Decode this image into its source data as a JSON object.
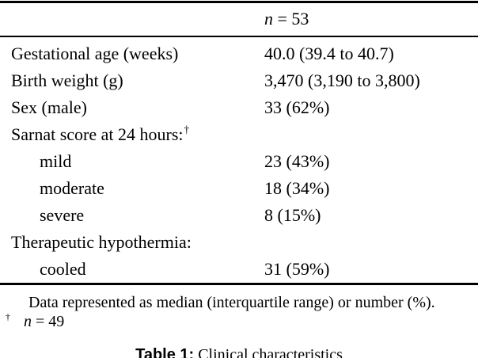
{
  "table": {
    "header": {
      "variable": "n",
      "value": "= 53"
    },
    "rows": [
      {
        "label": "Gestational age (weeks)",
        "value": "40.0 (39.4 to 40.7)"
      },
      {
        "label": "Birth weight (g)",
        "value": "3,470 (3,190 to 3,800)"
      },
      {
        "label": "Sex (male)",
        "value": "33 (62%)"
      },
      {
        "label": "Sarnat score at 24 hours:",
        "marker": "†",
        "value": ""
      },
      {
        "label": "mild",
        "value": "23 (43%)"
      },
      {
        "label": "moderate",
        "value": "18 (34%)"
      },
      {
        "label": "severe",
        "value": "8 (15%)"
      },
      {
        "label": "Therapeutic hypothermia:",
        "value": ""
      },
      {
        "label": "cooled",
        "value": "31 (59%)"
      }
    ]
  },
  "footnotes": {
    "general": "Data represented as median (interquartile range) or number (%).",
    "dagger": {
      "marker": "†",
      "variable": "n",
      "value": "= 49"
    }
  },
  "caption": {
    "label": "Table 1:",
    "text": "Clinical characteristics"
  },
  "colors": {
    "text": "#000000",
    "background": "#ffffff",
    "rule": "#000000"
  }
}
